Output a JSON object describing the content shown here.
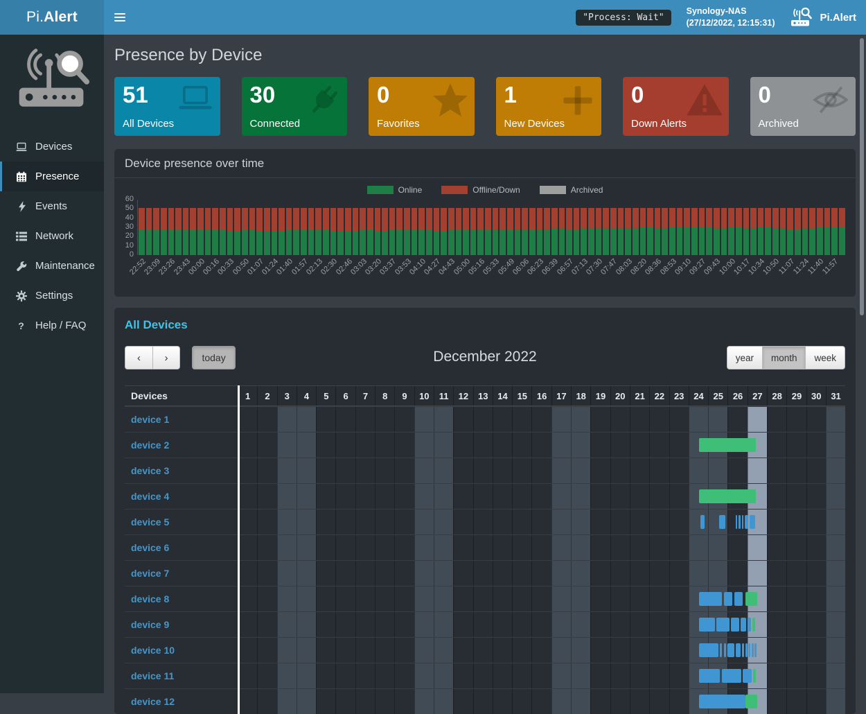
{
  "navbar": {
    "logo_pi": "Pi.",
    "logo_alert": "Alert",
    "process_badge": "\"Process: Wait\"",
    "host_name": "Synology-NAS",
    "host_time": "(27/12/2022, 12:15:31)",
    "brand": "Pi.Alert"
  },
  "sidebar": {
    "items": [
      {
        "label": "Devices",
        "icon": "laptop-icon",
        "active": false
      },
      {
        "label": "Presence",
        "icon": "calendar-icon",
        "active": true
      },
      {
        "label": "Events",
        "icon": "bolt-icon",
        "active": false
      },
      {
        "label": "Network",
        "icon": "network-icon",
        "active": false
      },
      {
        "label": "Maintenance",
        "icon": "wrench-icon",
        "active": false
      },
      {
        "label": "Settings",
        "icon": "gear-icon",
        "active": false
      },
      {
        "label": "Help / FAQ",
        "icon": "question-icon",
        "active": false
      }
    ]
  },
  "page": {
    "title": "Presence by Device"
  },
  "cards": [
    {
      "value": "51",
      "label": "All Devices",
      "color": "#0a87a8",
      "icon": "laptop"
    },
    {
      "value": "30",
      "label": "Connected",
      "color": "#067339",
      "icon": "plug"
    },
    {
      "value": "0",
      "label": "Favorites",
      "color": "#bf7d05",
      "icon": "star"
    },
    {
      "value": "1",
      "label": "New Devices",
      "color": "#bf7d05",
      "icon": "plus"
    },
    {
      "value": "0",
      "label": "Down Alerts",
      "color": "#a53e2e",
      "icon": "warning"
    },
    {
      "value": "0",
      "label": "Archived",
      "color": "#8f9295",
      "icon": "eye-slash"
    }
  ],
  "chart_data": {
    "type": "bar",
    "stacked": true,
    "title": "Device presence over time",
    "legend": [
      "Online",
      "Offline/Down",
      "Archived"
    ],
    "legend_colors": [
      "#1f7d46",
      "#a4402f",
      "#9e9e9e"
    ],
    "ylim": [
      0,
      60
    ],
    "yticks": [
      0,
      10,
      20,
      30,
      40,
      50,
      60
    ],
    "x_labels": [
      "22:52",
      "23:09",
      "23:26",
      "23:43",
      "00:00",
      "00:16",
      "00:33",
      "00:50",
      "01:07",
      "01:24",
      "01:40",
      "01:57",
      "02:13",
      "02:30",
      "02:46",
      "03:03",
      "03:20",
      "03:37",
      "03:53",
      "04:10",
      "04:27",
      "04:43",
      "05:00",
      "05:16",
      "05:33",
      "05:49",
      "06:06",
      "06:23",
      "06:39",
      "06:57",
      "07:13",
      "07:30",
      "07:47",
      "08:03",
      "08:20",
      "08:36",
      "08:53",
      "09:10",
      "09:27",
      "09:43",
      "10:00",
      "10:17",
      "10:34",
      "10:50",
      "11:07",
      "11:24",
      "11:40",
      "11:57"
    ],
    "bars_per_label": 2,
    "series": [
      {
        "name": "Online",
        "values": [
          28,
          28,
          28,
          28,
          27,
          27,
          28,
          28,
          27,
          27,
          27,
          27,
          26,
          26,
          27,
          27,
          26,
          26,
          26,
          26,
          27,
          27,
          27,
          27,
          27,
          27,
          26,
          26,
          26,
          26,
          27,
          27,
          26,
          26,
          27,
          27,
          27,
          27,
          27,
          27,
          26,
          26,
          27,
          27,
          27,
          27,
          28,
          28,
          28,
          28,
          28,
          28,
          28,
          28,
          28,
          28,
          29,
          29,
          28,
          28,
          29,
          29,
          29,
          29,
          29,
          29,
          29,
          29,
          30,
          30,
          29,
          29,
          30,
          30,
          30,
          30,
          30,
          30,
          29,
          29,
          30,
          30,
          29,
          29,
          30,
          30,
          29,
          29,
          28,
          28,
          29,
          29,
          30,
          30,
          30,
          30
        ]
      },
      {
        "name": "Offline/Down",
        "values": [
          23,
          23,
          23,
          23,
          24,
          24,
          23,
          23,
          24,
          24,
          24,
          24,
          25,
          25,
          24,
          24,
          25,
          25,
          25,
          25,
          24,
          24,
          24,
          24,
          24,
          24,
          25,
          25,
          25,
          25,
          24,
          24,
          25,
          25,
          24,
          24,
          24,
          24,
          24,
          24,
          25,
          25,
          24,
          24,
          24,
          24,
          23,
          23,
          23,
          23,
          23,
          23,
          23,
          23,
          23,
          23,
          22,
          22,
          23,
          23,
          22,
          22,
          22,
          22,
          22,
          22,
          22,
          22,
          21,
          21,
          22,
          22,
          21,
          21,
          21,
          21,
          21,
          21,
          22,
          22,
          21,
          21,
          22,
          22,
          21,
          21,
          22,
          22,
          23,
          23,
          22,
          22,
          21,
          21,
          21,
          21
        ]
      },
      {
        "name": "Archived",
        "values": [
          0,
          0,
          0,
          0,
          0,
          0,
          0,
          0,
          0,
          0,
          0,
          0,
          0,
          0,
          0,
          0,
          0,
          0,
          0,
          0,
          0,
          0,
          0,
          0,
          0,
          0,
          0,
          0,
          0,
          0,
          0,
          0,
          0,
          0,
          0,
          0,
          0,
          0,
          0,
          0,
          0,
          0,
          0,
          0,
          0,
          0,
          0,
          0,
          0,
          0,
          0,
          0,
          0,
          0,
          0,
          0,
          0,
          0,
          0,
          0,
          0,
          0,
          0,
          0,
          0,
          0,
          0,
          0,
          0,
          0,
          0,
          0,
          0,
          0,
          0,
          0,
          0,
          0,
          0,
          0,
          0,
          0,
          0,
          0,
          0,
          0,
          0,
          0,
          0,
          0,
          0,
          0,
          0,
          0,
          0,
          0
        ]
      }
    ]
  },
  "calendar": {
    "section_title": "All Devices",
    "toolbar": {
      "today_label": "today",
      "title": "December 2022",
      "views": [
        "year",
        "month",
        "week"
      ],
      "active_view": "month"
    },
    "table": {
      "device_header": "Devices",
      "days": [
        "1",
        "2",
        "3",
        "4",
        "5",
        "6",
        "7",
        "8",
        "9",
        "10",
        "11",
        "12",
        "13",
        "14",
        "15",
        "16",
        "17",
        "18",
        "19",
        "20",
        "21",
        "22",
        "23",
        "24",
        "25",
        "26",
        "27",
        "28",
        "29",
        "30",
        "31"
      ],
      "weekend_days": [
        3,
        4,
        10,
        11,
        17,
        18,
        24,
        25,
        31
      ],
      "today_day": 27,
      "devices": [
        {
          "name": "device 1",
          "events": []
        },
        {
          "name": "device 2",
          "events": [
            {
              "color": "current",
              "start": 24.53,
              "end": 27.45
            }
          ]
        },
        {
          "name": "device 3",
          "events": []
        },
        {
          "name": "device 4",
          "events": [
            {
              "color": "current",
              "start": 24.53,
              "end": 27.45
            }
          ]
        },
        {
          "name": "device 5",
          "events": [
            {
              "color": "session",
              "start": 24.6,
              "end": 24.82
            },
            {
              "color": "session",
              "start": 25.55,
              "end": 25.9
            },
            {
              "color": "session",
              "start": 26.42,
              "end": 26.5
            },
            {
              "color": "session",
              "start": 26.56,
              "end": 26.66
            },
            {
              "color": "session",
              "start": 26.72,
              "end": 26.8
            },
            {
              "color": "session",
              "start": 26.86,
              "end": 27.06
            },
            {
              "color": "session",
              "start": 27.12,
              "end": 27.42
            }
          ]
        },
        {
          "name": "device 6",
          "events": []
        },
        {
          "name": "device 7",
          "events": []
        },
        {
          "name": "device 8",
          "events": [
            {
              "color": "session",
              "start": 24.53,
              "end": 25.72
            },
            {
              "color": "session",
              "start": 25.82,
              "end": 26.24
            },
            {
              "color": "session",
              "start": 26.33,
              "end": 26.77
            },
            {
              "color": "current",
              "start": 26.9,
              "end": 27.5
            }
          ]
        },
        {
          "name": "device 9",
          "events": [
            {
              "color": "session",
              "start": 24.53,
              "end": 25.37
            },
            {
              "color": "session",
              "start": 25.44,
              "end": 26.1
            },
            {
              "color": "session",
              "start": 26.18,
              "end": 26.6
            },
            {
              "color": "session",
              "start": 26.68,
              "end": 26.93
            },
            {
              "color": "session",
              "start": 27.0,
              "end": 27.2
            },
            {
              "color": "current",
              "start": 27.28,
              "end": 27.42
            }
          ]
        },
        {
          "name": "device 10",
          "events": [
            {
              "color": "session",
              "start": 24.53,
              "end": 25.54
            },
            {
              "color": "session",
              "start": 25.6,
              "end": 25.72
            },
            {
              "color": "session",
              "start": 25.8,
              "end": 25.92
            },
            {
              "color": "session",
              "start": 26.0,
              "end": 26.35
            },
            {
              "color": "session",
              "start": 26.42,
              "end": 26.67
            },
            {
              "color": "session",
              "start": 26.74,
              "end": 26.85
            },
            {
              "color": "session",
              "start": 26.92,
              "end": 27.02
            },
            {
              "color": "session",
              "start": 27.08,
              "end": 27.17
            },
            {
              "color": "session",
              "start": 27.23,
              "end": 27.32
            },
            {
              "color": "session",
              "start": 27.38,
              "end": 27.48
            }
          ]
        },
        {
          "name": "device 11",
          "events": [
            {
              "color": "session",
              "start": 24.53,
              "end": 25.62
            },
            {
              "color": "session",
              "start": 25.72,
              "end": 26.7
            },
            {
              "color": "session",
              "start": 26.77,
              "end": 27.23
            },
            {
              "color": "current",
              "start": 27.3,
              "end": 27.45
            }
          ]
        },
        {
          "name": "device 12",
          "events": [
            {
              "color": "session",
              "start": 24.53,
              "end": 26.9
            },
            {
              "color": "current",
              "start": 26.9,
              "end": 27.5
            }
          ]
        }
      ]
    }
  },
  "colors": {
    "accent": "#3c8dbc",
    "online": "#1f7d46",
    "offline": "#a4402f",
    "archived": "#9e9e9e",
    "event_session": "#3f96d2",
    "event_online": "#3fbe78"
  }
}
